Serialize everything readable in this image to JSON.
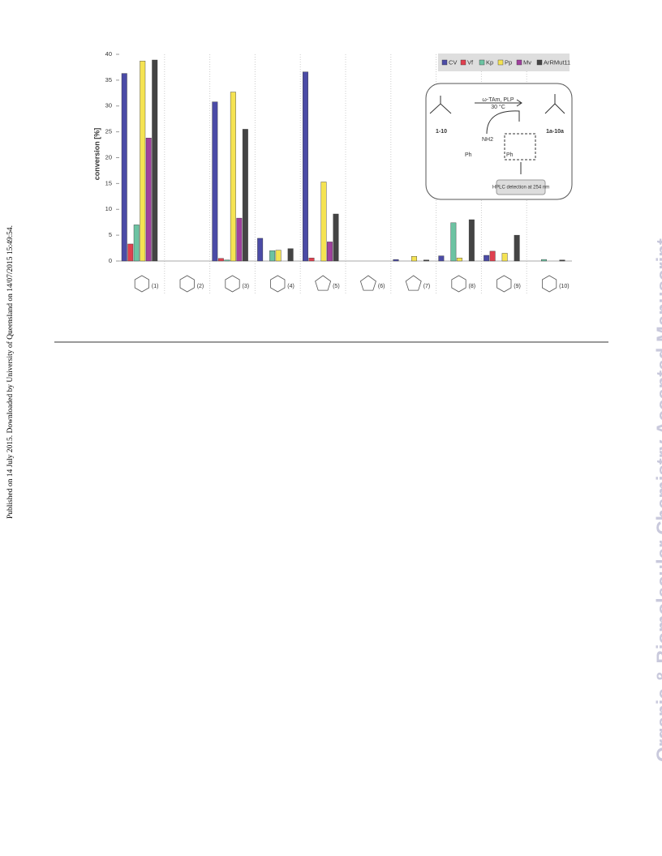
{
  "margin_note": "Published on 14 July 2015. Downloaded by University of Queensland on 14/07/2015 15:49:54.",
  "watermark": "Organic & Biomolecular Chemistry Accepted Manuscript",
  "chart_data": {
    "type": "bar",
    "y_label": "conversion [%]",
    "categories": [
      "(1)",
      "(2)",
      "(3)",
      "(4)",
      "(5)",
      "(6)",
      "(7)",
      "(8)",
      "(9)",
      "(10)"
    ],
    "series": [
      {
        "name": "CV",
        "color": "#4b4ba6",
        "values": [
          36.3,
          0,
          30.8,
          4.4,
          36.6,
          0,
          0.3,
          1,
          1.1,
          0
        ]
      },
      {
        "name": "Vf",
        "color": "#e0404f",
        "values": [
          3.3,
          0,
          0.5,
          0,
          0.6,
          0,
          0,
          0,
          1.9,
          0
        ]
      },
      {
        "name": "Kp",
        "color": "#6cc3a2",
        "values": [
          7,
          0,
          0.2,
          2,
          0,
          0,
          0,
          7.4,
          0,
          0.3
        ]
      },
      {
        "name": "Pp",
        "color": "#f5e352",
        "values": [
          38.7,
          0,
          32.7,
          2.1,
          15.3,
          0,
          0.9,
          0.6,
          1.5,
          0
        ]
      },
      {
        "name": "Mv",
        "color": "#a0409e",
        "values": [
          23.8,
          0,
          8.3,
          0,
          3.7,
          0,
          0,
          0,
          0,
          0
        ]
      },
      {
        "name": "ArRMut11",
        "color": "#444444",
        "values": [
          38.9,
          0,
          25.5,
          2.4,
          9.1,
          0,
          0.2,
          8,
          5,
          0.2
        ]
      }
    ],
    "ylim": [
      0,
      40
    ],
    "yticks": [
      0,
      5,
      10,
      15,
      20,
      25,
      30,
      35,
      40
    ],
    "scheme": {
      "reagent": "ω-TAm, PLP",
      "temperature": "30 °C",
      "substrates": "1-10",
      "products": "1a-10a",
      "amine": "NH2",
      "phenyl": "Ph",
      "byproduct": "Ph",
      "detection": "HPLC detection at 254 nm"
    }
  }
}
